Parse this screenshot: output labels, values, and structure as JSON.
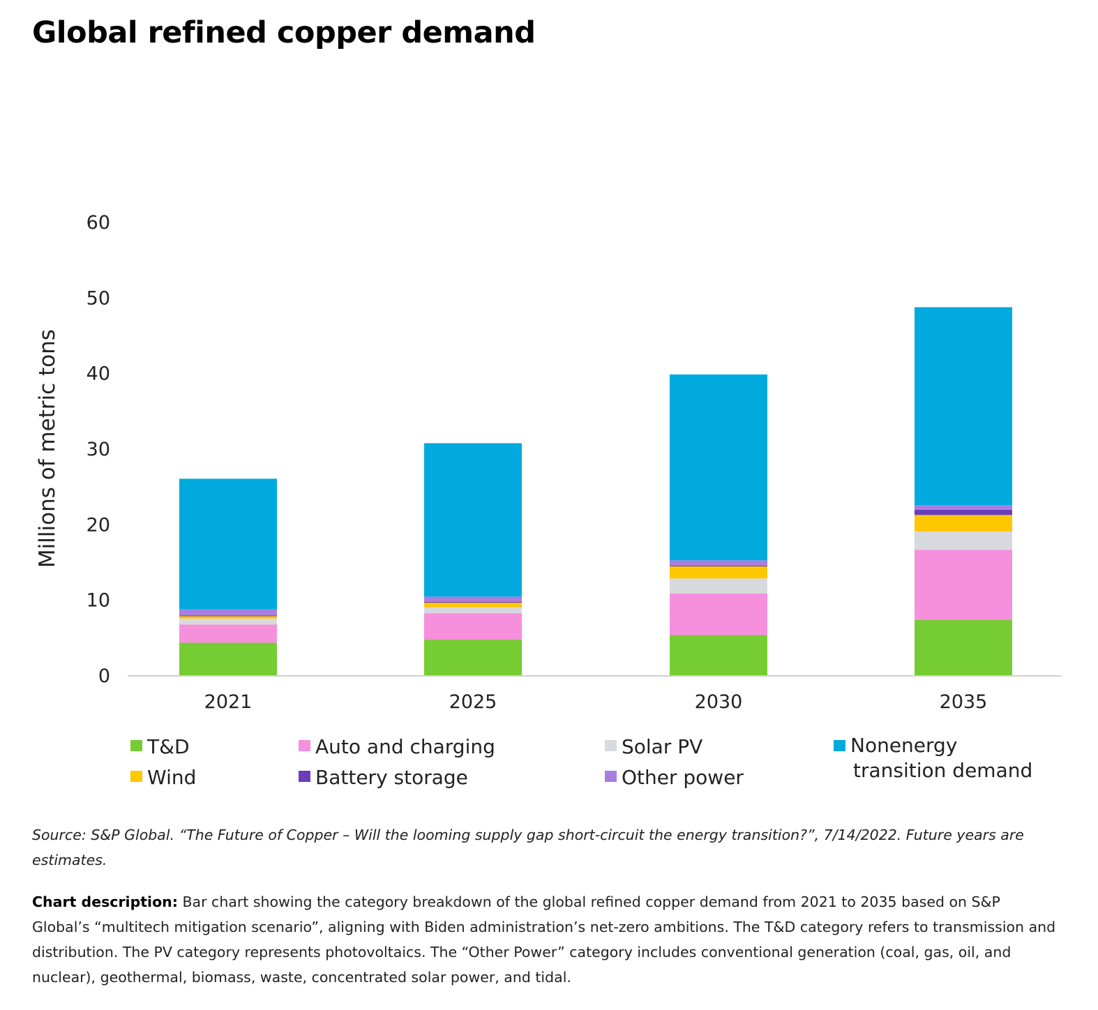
{
  "title": "Global refined copper demand",
  "chart_data": {
    "type": "bar",
    "stacked": true,
    "ylabel": "Millions of metric tons",
    "xlabel": "",
    "ylim": [
      0,
      60
    ],
    "yticks": [
      0,
      10,
      20,
      30,
      40,
      50,
      60
    ],
    "categories": [
      "2021",
      "2025",
      "2030",
      "2035"
    ],
    "series": [
      {
        "name": "T&D",
        "color": "#76CC33",
        "values": [
          4.3,
          4.7,
          5.3,
          7.3
        ]
      },
      {
        "name": "Auto and charging",
        "color": "#F68FDC",
        "values": [
          2.4,
          3.5,
          5.5,
          9.3
        ]
      },
      {
        "name": "Solar PV",
        "color": "#D8D8DF",
        "values": [
          0.8,
          0.8,
          2.0,
          2.4
        ]
      },
      {
        "name": "Wind",
        "color": "#FFC700",
        "values": [
          0.3,
          0.6,
          1.6,
          2.2
        ]
      },
      {
        "name": "Battery storage",
        "color": "#6B3DB8",
        "values": [
          0.1,
          0.1,
          0.1,
          0.7
        ]
      },
      {
        "name": "Other power",
        "color": "#A87EE0",
        "values": [
          0.8,
          0.7,
          0.7,
          0.6
        ]
      },
      {
        "name": "Nonenergy transition demand",
        "color": "#00AADF",
        "values": [
          17.3,
          20.3,
          24.6,
          26.2
        ]
      }
    ],
    "legend_order": [
      "T&D",
      "Auto and charging",
      "Solar PV",
      "Nonenergy transition demand",
      "Wind",
      "Battery storage",
      "Other power"
    ]
  },
  "source": "Source: S&P Global. “The Future of Copper – Will the looming supply gap short-circuit the energy transition?”, 7/14/2022. Future years are estimates.",
  "description": {
    "label": "Chart description:",
    "text": " Bar chart showing the category breakdown of the global refined copper demand from 2021 to 2035 based on S&P Global’s “multitech mitigation scenario”, aligning with Biden administration’s net-zero ambitions. The T&D category refers to transmission and distribution. The PV category represents photovoltaics. The “Other Power” category includes conventional generation (coal, gas, oil, and nuclear), geothermal, biomass, waste, concentrated solar power, and tidal."
  }
}
